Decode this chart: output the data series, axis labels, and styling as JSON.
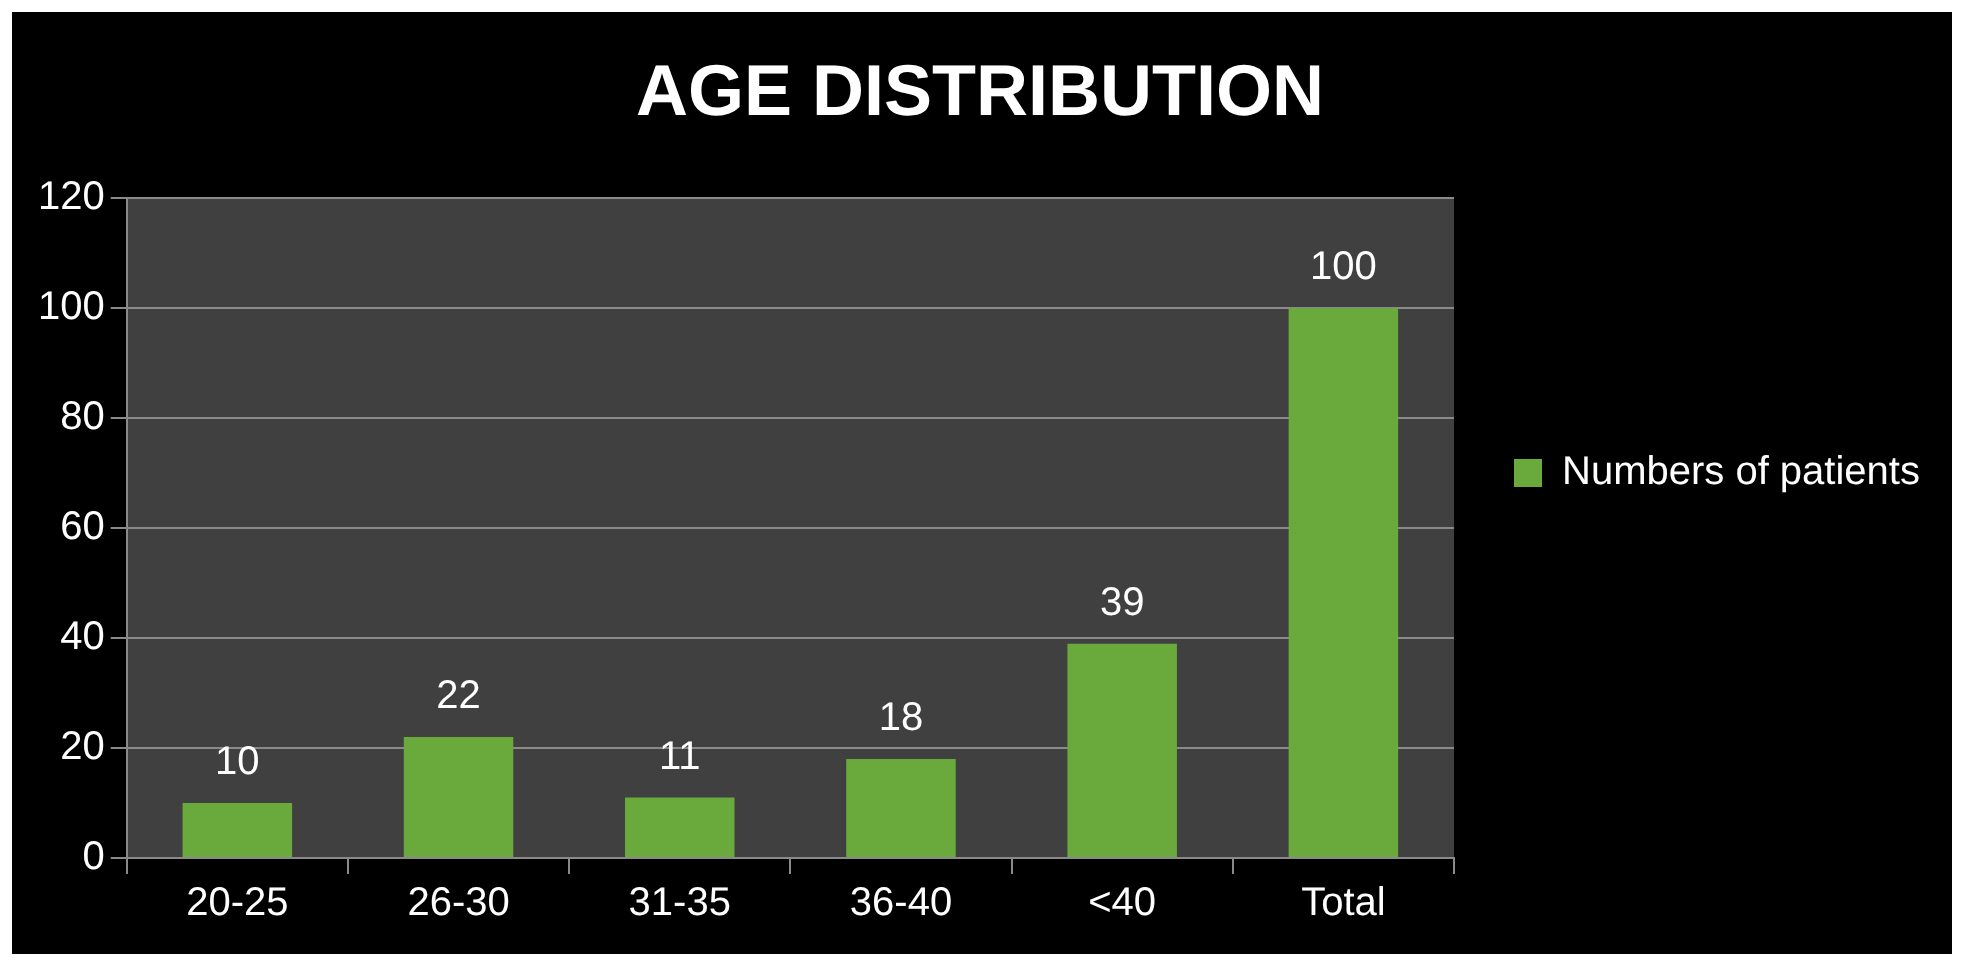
{
  "chart_data": {
    "type": "bar",
    "title": "AGE DISTRIBUTION",
    "categories": [
      "20-25",
      "26-30",
      "31-35",
      "36-40",
      "<40",
      "Total"
    ],
    "series": [
      {
        "name": "Numbers of patients",
        "color": "#6aaa3c",
        "values": [
          10,
          22,
          11,
          18,
          39,
          100
        ]
      }
    ],
    "ylim": [
      0,
      120
    ],
    "yticks": [
      0,
      20,
      40,
      60,
      80,
      100,
      120
    ],
    "grid": "y",
    "legend": "right",
    "data_labels": true
  }
}
